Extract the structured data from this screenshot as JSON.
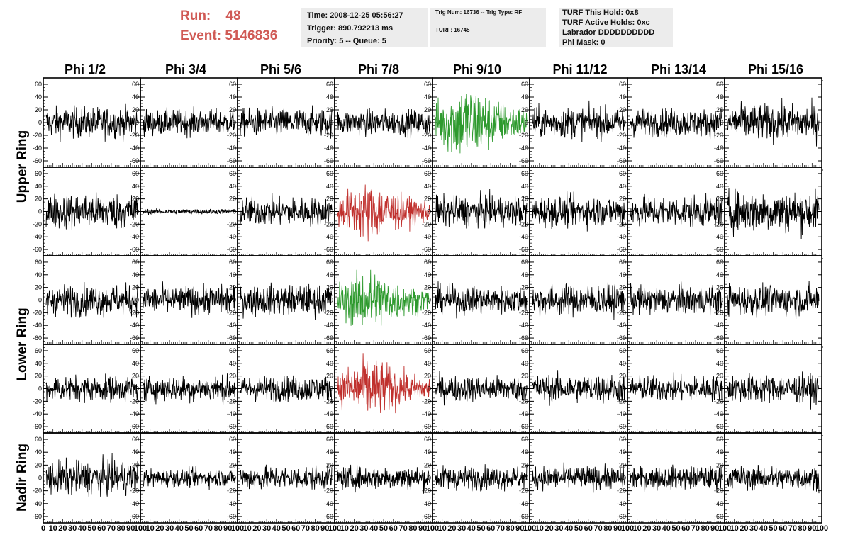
{
  "header": {
    "run_label": "Run:",
    "run_value": "48",
    "event_label": "Event:",
    "event_value": "5146836",
    "time_line": "Time: 2008-12-25 05:56:27",
    "trigger_line": "Trigger: 890.792213 ms",
    "priority_line": "Priority: 5 -- Queue: 5",
    "trig_line": "Trig Num: 16736 -- Trig Type: RF",
    "turf_line": "TURF: 16745",
    "turf_hold_line": "TURF This Hold: 0x8",
    "turf_active_line": "TURF Active Holds: 0xc",
    "labrador_line": "Labrador DDDDDDDDDD",
    "phi_mask_line": "Phi Mask: 0"
  },
  "colors": {
    "header_red": "#d05a55",
    "trace_default": "#000000",
    "trace_green": "#2e9a2e",
    "trace_red": "#c0302d",
    "info_box_bg": "#ececec"
  },
  "chart_data": {
    "type": "line",
    "phi_labels": [
      "Phi 1/2",
      "Phi 3/4",
      "Phi 5/6",
      "Phi 7/8",
      "Phi 9/10",
      "Phi 11/12",
      "Phi 13/14",
      "Phi 15/16"
    ],
    "ring_labels": [
      "Upper Ring",
      "Lower Ring",
      "Nadir Ring"
    ],
    "row_count": 5,
    "xlim": [
      0,
      100
    ],
    "ylim": [
      -70,
      70
    ],
    "x_ticks": [
      "0",
      "10",
      "20",
      "30",
      "40",
      "50",
      "60",
      "70",
      "80",
      "90",
      "100"
    ],
    "y_ticks": [
      -60,
      -40,
      -20,
      0,
      20,
      40,
      60
    ],
    "samples_per_trace": 260,
    "highlighted_panels": [
      {
        "row": 0,
        "col": 4,
        "color": "green"
      },
      {
        "row": 1,
        "col": 3,
        "color": "red"
      },
      {
        "row": 2,
        "col": 3,
        "color": "green"
      },
      {
        "row": 3,
        "col": 3,
        "color": "red"
      }
    ],
    "amplitudes": [
      [
        12,
        10,
        11,
        10,
        20,
        12,
        11,
        14
      ],
      [
        14,
        2,
        11,
        15,
        12,
        12,
        12,
        16
      ],
      [
        12,
        11,
        12,
        16,
        11,
        12,
        11,
        12
      ],
      [
        10,
        10,
        10,
        16,
        10,
        11,
        10,
        11
      ],
      [
        13,
        7,
        9,
        9,
        9,
        9,
        9,
        9
      ]
    ]
  }
}
